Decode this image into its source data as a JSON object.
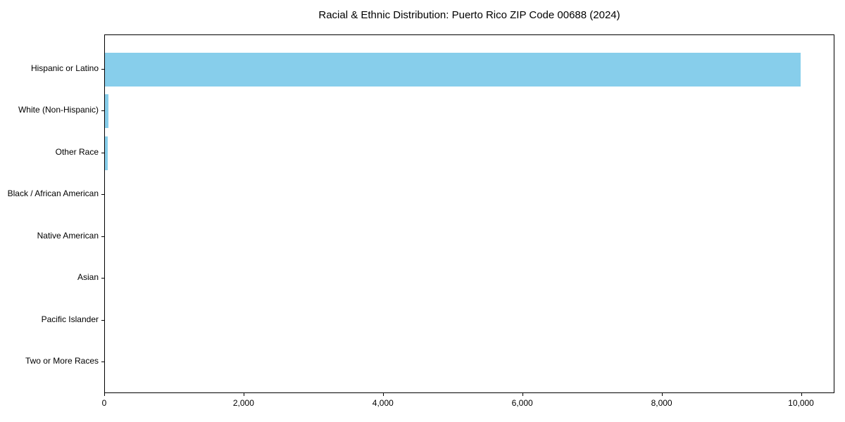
{
  "chart_data": {
    "type": "bar",
    "orientation": "horizontal",
    "title": "Racial & Ethnic Distribution: Puerto Rico ZIP Code 00688 (2024)",
    "categories": [
      "Hispanic or Latino",
      "White (Non-Hispanic)",
      "Other Race",
      "Black / African American",
      "Native American",
      "Asian",
      "Pacific Islander",
      "Two or More Races"
    ],
    "values": [
      9980,
      50,
      40,
      0,
      0,
      0,
      0,
      0
    ],
    "xlabel": "",
    "ylabel": "",
    "xlim": [
      0,
      10480
    ],
    "xticks": [
      0,
      2000,
      4000,
      6000,
      8000,
      10000
    ],
    "xtick_labels": [
      "0",
      "2,000",
      "4,000",
      "6,000",
      "8,000",
      "10,000"
    ],
    "bar_color": "#87CEEB",
    "axis_color": "#000000",
    "background_color": "#ffffff",
    "grid": false,
    "legend": null
  }
}
